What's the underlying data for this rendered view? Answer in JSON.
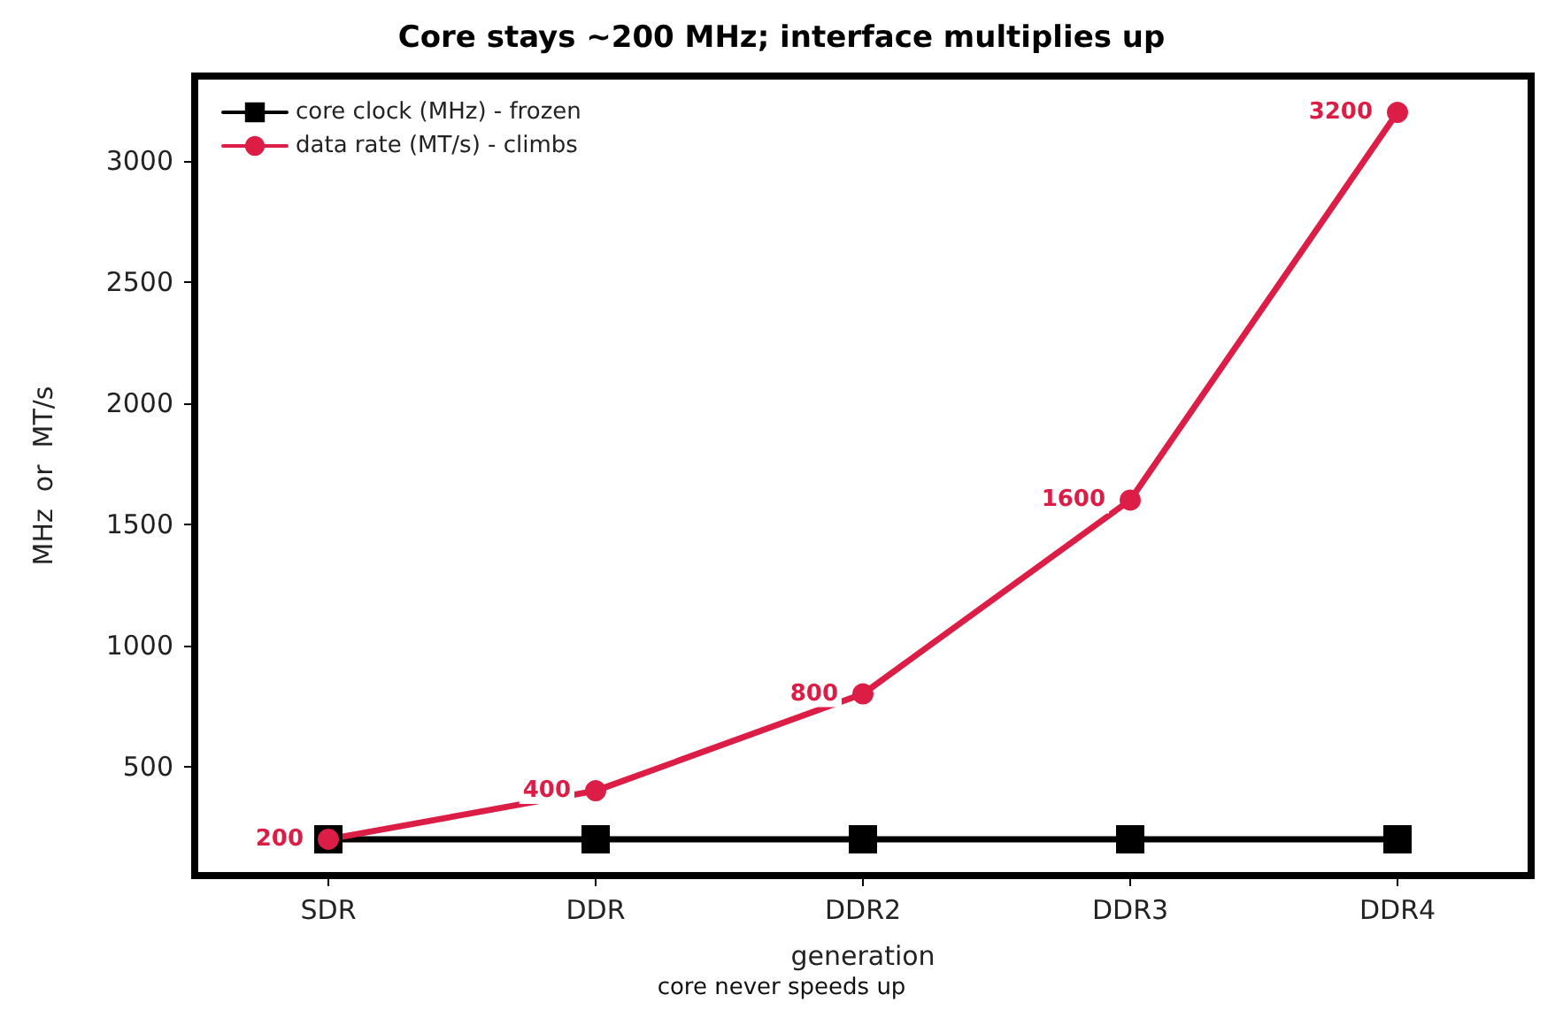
{
  "chart_data": {
    "type": "line",
    "title": "Core stays ~200 MHz; interface multiplies up",
    "xlabel": "generation",
    "ylabel": "MHz  or  MT/s",
    "categories": [
      "SDR",
      "DDR",
      "DDR2",
      "DDR3",
      "DDR4"
    ],
    "series": [
      {
        "name": "core clock (MHz) - frozen",
        "color": "#000000",
        "marker": "square",
        "values": [
          200,
          200,
          200,
          200,
          200
        ]
      },
      {
        "name": "data rate (MT/s) - climbs",
        "color": "#dc1e46",
        "marker": "circle",
        "values": [
          200,
          400,
          800,
          1600,
          3200
        ],
        "value_labels": [
          "200",
          "400",
          "800",
          "1600",
          "3200"
        ]
      }
    ],
    "ylim": [
      50,
      3350
    ],
    "yticks": [
      500,
      1000,
      1500,
      2000,
      2500,
      3000
    ],
    "grid": false,
    "legend": "top left",
    "line_style": "solid",
    "annotations": [
      "core never speeds up"
    ]
  }
}
